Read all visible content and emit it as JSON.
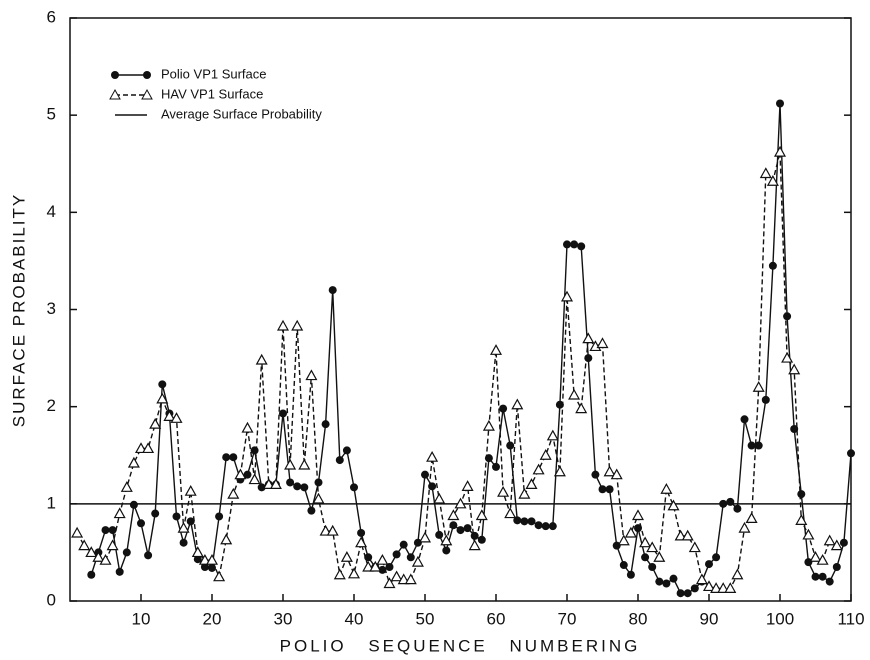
{
  "chart_data": {
    "type": "line",
    "x_label": "POLIO SEQUENCE NUMBERING",
    "y_label": "SURFACE PROBABILITY",
    "xlim": [
      0,
      110
    ],
    "ylim": [
      0,
      6
    ],
    "xticks": [
      10,
      20,
      30,
      40,
      50,
      60,
      70,
      80,
      90,
      100,
      110
    ],
    "yticks": [
      0,
      1,
      2,
      3,
      4,
      5,
      6
    ],
    "legend": "upper-left",
    "x": [
      1,
      2,
      3,
      4,
      5,
      6,
      7,
      8,
      9,
      10,
      11,
      12,
      13,
      14,
      15,
      16,
      17,
      18,
      19,
      20,
      21,
      22,
      23,
      24,
      25,
      26,
      27,
      28,
      29,
      30,
      31,
      32,
      33,
      34,
      35,
      36,
      37,
      38,
      39,
      40,
      41,
      42,
      43,
      44,
      45,
      46,
      47,
      48,
      49,
      50,
      51,
      52,
      53,
      54,
      55,
      56,
      57,
      58,
      59,
      60,
      61,
      62,
      63,
      64,
      65,
      66,
      67,
      68,
      69,
      70,
      71,
      72,
      73,
      74,
      75,
      76,
      77,
      78,
      79,
      80,
      81,
      82,
      83,
      84,
      85,
      86,
      87,
      88,
      89,
      90,
      91,
      92,
      93,
      94,
      95,
      96,
      97,
      98,
      99,
      100,
      101,
      102,
      103,
      104,
      105,
      106,
      107,
      108,
      109,
      110
    ],
    "series": [
      {
        "name": "Polio VP1 Surface",
        "color": "#111111",
        "marker": "circle",
        "dashed": false,
        "values": [
          null,
          null,
          0.27,
          0.5,
          0.73,
          0.73,
          0.3,
          0.5,
          0.99,
          0.8,
          0.47,
          0.9,
          2.23,
          1.93,
          0.87,
          0.6,
          0.82,
          0.43,
          0.35,
          0.34,
          0.87,
          1.48,
          1.48,
          1.25,
          1.3,
          1.55,
          1.17,
          1.2,
          1.2,
          1.93,
          1.22,
          1.18,
          1.17,
          0.93,
          1.22,
          1.82,
          3.2,
          1.45,
          1.55,
          1.17,
          0.7,
          0.45,
          0.35,
          0.32,
          0.35,
          0.48,
          0.58,
          0.45,
          0.6,
          1.3,
          1.18,
          0.68,
          0.52,
          0.78,
          0.73,
          0.75,
          0.67,
          0.63,
          1.47,
          1.38,
          1.98,
          1.6,
          0.83,
          0.82,
          0.82,
          0.78,
          0.77,
          0.77,
          2.02,
          3.67,
          3.67,
          3.65,
          2.5,
          1.3,
          1.15,
          1.15,
          0.57,
          0.37,
          0.27,
          0.75,
          0.45,
          0.35,
          0.2,
          0.18,
          0.23,
          0.08,
          0.08,
          0.13,
          0.2,
          0.38,
          0.45,
          1.0,
          1.02,
          0.95,
          1.87,
          1.6,
          1.6,
          2.07,
          3.45,
          5.12,
          2.93,
          1.77,
          1.1,
          0.4,
          0.25,
          0.25,
          0.2,
          0.35,
          0.6,
          1.52
        ]
      },
      {
        "name": "HAV VP1 Surface",
        "color": "#111111",
        "marker": "triangle",
        "dashed": true,
        "values": [
          0.7,
          0.57,
          0.5,
          0.45,
          0.42,
          0.57,
          0.9,
          1.17,
          1.42,
          1.57,
          1.57,
          1.82,
          2.08,
          1.9,
          1.88,
          0.75,
          1.13,
          0.5,
          0.42,
          0.42,
          0.25,
          0.63,
          1.1,
          1.3,
          1.78,
          1.25,
          2.48,
          1.2,
          1.2,
          2.83,
          1.4,
          2.83,
          1.4,
          2.32,
          1.05,
          0.72,
          0.72,
          0.27,
          0.45,
          0.28,
          0.6,
          0.35,
          0.35,
          0.42,
          0.18,
          0.25,
          0.22,
          0.22,
          0.4,
          0.65,
          1.48,
          1.05,
          0.62,
          0.88,
          1.0,
          1.18,
          0.57,
          0.88,
          1.8,
          2.58,
          1.12,
          0.9,
          2.02,
          1.1,
          1.2,
          1.35,
          1.5,
          1.7,
          1.33,
          3.13,
          2.12,
          1.98,
          2.7,
          2.62,
          2.65,
          1.33,
          1.3,
          0.62,
          0.7,
          0.88,
          0.6,
          0.55,
          0.45,
          1.15,
          0.98,
          0.67,
          0.67,
          0.55,
          0.22,
          0.15,
          0.13,
          0.13,
          0.13,
          0.27,
          0.75,
          0.85,
          2.2,
          4.4,
          4.32,
          4.62,
          2.5,
          2.38,
          0.83,
          0.68,
          0.45,
          0.42,
          0.62,
          0.57,
          null,
          null
        ]
      }
    ],
    "reference_line": {
      "name": "Average Surface Probability",
      "value": 1,
      "color": "#111111"
    }
  }
}
